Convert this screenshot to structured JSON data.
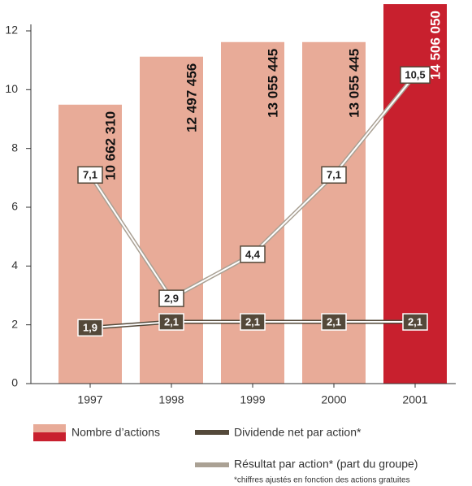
{
  "chart_data": {
    "type": "bar",
    "categories": [
      "1997",
      "1998",
      "1999",
      "2000",
      "2001"
    ],
    "series": [
      {
        "name": "Nombre d’actions",
        "type": "bar",
        "axis": "y2",
        "color": "#e8ab98",
        "colors": [
          "#e8ab98",
          "#e8ab98",
          "#e8ab98",
          "#e8ab98",
          "#c8202e"
        ],
        "values": [
          10662310,
          12497456,
          13055445,
          13055445,
          14506050
        ],
        "value_labels": [
          "10 662 310",
          "12 497 456",
          "13 055 445",
          "13 055 445",
          "14 506 050"
        ]
      },
      {
        "name": "Dividende net par action*",
        "type": "line",
        "color": "#54493a",
        "values": [
          1.9,
          2.1,
          2.1,
          2.1,
          2.1
        ],
        "value_labels": [
          "1,9",
          "2,1",
          "2,1",
          "2,1",
          "2,1"
        ]
      },
      {
        "name": "Résultat par action* (part du groupe)",
        "type": "line",
        "color": "#aaa194",
        "values": [
          7.1,
          2.9,
          4.4,
          7.1,
          10.5
        ],
        "value_labels": [
          "7,1",
          "2,9",
          "4,4",
          "7,1",
          "10,5"
        ]
      }
    ],
    "ylim": [
      0,
      12
    ],
    "yticks": [
      0,
      2,
      4,
      6,
      8,
      10,
      12
    ],
    "y2lim": [
      0,
      13483000
    ],
    "footnote": "*chiffres ajustés en fonction des actions gratuites"
  }
}
